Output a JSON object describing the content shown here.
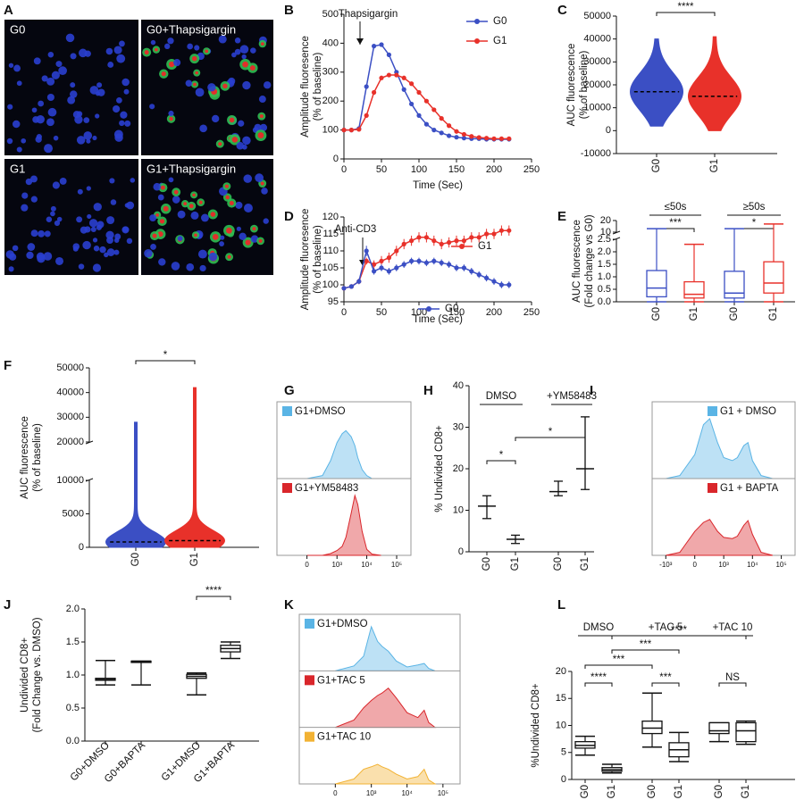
{
  "chart_data": [
    {
      "panel": "A",
      "type": "image",
      "labels": [
        "G0",
        "G0+Thapsigargin",
        "G1",
        "G1+Thapsigargin"
      ]
    },
    {
      "panel": "B",
      "type": "line",
      "annotation": "Thapsigargin",
      "xlabel": "Time (Sec)",
      "ylabel": [
        "Amplitude fluoresence",
        "(% of baseline)"
      ],
      "x": [
        0,
        10,
        20,
        30,
        40,
        50,
        60,
        70,
        80,
        90,
        100,
        110,
        120,
        130,
        140,
        150,
        160,
        170,
        180,
        190,
        200,
        210,
        220
      ],
      "xlim": [
        0,
        250
      ],
      "xticks": [
        0,
        50,
        100,
        150,
        200,
        250
      ],
      "ylim": [
        0,
        500
      ],
      "yticks": [
        0,
        100,
        200,
        300,
        400,
        500
      ],
      "series": [
        {
          "name": "G0",
          "color": "#3b4fc4",
          "values": [
            100,
            100,
            105,
            250,
            390,
            395,
            360,
            300,
            240,
            190,
            150,
            120,
            100,
            90,
            80,
            75,
            72,
            70,
            70,
            68,
            68,
            68,
            68
          ]
        },
        {
          "name": "G1",
          "color": "#e8312a",
          "values": [
            100,
            100,
            102,
            150,
            230,
            280,
            290,
            290,
            280,
            260,
            230,
            200,
            170,
            140,
            115,
            95,
            85,
            78,
            74,
            72,
            70,
            70,
            70
          ]
        }
      ]
    },
    {
      "panel": "C",
      "type": "violin",
      "ylabel": [
        "AUC fluorescence",
        "(% of baseline)"
      ],
      "ylim": [
        -10000,
        50000
      ],
      "yticks": [
        -10000,
        0,
        10000,
        20000,
        30000,
        40000,
        50000
      ],
      "categories": [
        "G0",
        "G1"
      ],
      "colors": [
        "#3b4fc4",
        "#e8312a"
      ],
      "min": [
        2000,
        0
      ],
      "median": [
        17000,
        15000
      ],
      "max": [
        40000,
        41000
      ],
      "significance": [
        {
          "label": "****",
          "pair": [
            0,
            1
          ]
        }
      ]
    },
    {
      "panel": "D",
      "type": "line",
      "annotation": "Anti-CD3",
      "xlabel": "Time (Sec)",
      "ylabel": [
        "Amplitude fluoresence",
        "(% of baseline)"
      ],
      "x": [
        0,
        10,
        20,
        30,
        40,
        50,
        60,
        70,
        80,
        90,
        100,
        110,
        120,
        130,
        140,
        150,
        160,
        170,
        180,
        190,
        200,
        210,
        220
      ],
      "xlim": [
        0,
        250
      ],
      "xticks": [
        0,
        50,
        100,
        150,
        200,
        250
      ],
      "ylim": [
        95,
        120
      ],
      "yticks": [
        95,
        100,
        105,
        110,
        115,
        120
      ],
      "series": [
        {
          "name": "G1",
          "color": "#e8312a",
          "values": [
            99,
            99.5,
            101,
            107,
            106,
            107,
            108,
            110,
            112,
            113,
            114,
            114,
            113,
            112,
            112.5,
            113,
            113,
            114,
            114,
            115,
            115,
            116,
            116
          ],
          "errors": [
            0.5,
            0.5,
            0.8,
            1,
            1.2,
            1.5,
            1.5,
            1.5,
            1.5,
            1.5,
            1.5,
            1.5,
            1.5,
            1.5,
            1.5,
            1.5,
            1.5,
            1.5,
            1.5,
            1.5,
            1.5,
            1.5,
            1.5
          ]
        },
        {
          "name": "G0",
          "color": "#3b4fc4",
          "values": [
            99,
            99.5,
            101,
            110,
            104,
            105,
            104,
            105,
            106,
            107,
            107,
            106.5,
            107,
            106.5,
            106,
            105,
            105,
            104,
            103,
            102,
            101,
            100,
            100
          ],
          "errors": [
            0.5,
            0.5,
            0.8,
            1.5,
            1,
            1,
            1,
            1,
            1,
            1,
            1,
            1,
            1,
            1,
            1,
            1,
            1,
            1,
            1,
            1,
            1,
            1,
            1
          ]
        }
      ]
    },
    {
      "panel": "E",
      "type": "box",
      "ylabel": [
        "AUC fluorescence",
        "(Fold change vs G0)"
      ],
      "ylim": [
        0,
        20
      ],
      "axis_break": [
        2.5,
        10
      ],
      "yticks": [
        {
          "value": 0,
          "label": "0.0"
        },
        {
          "value": 0.5,
          "label": "0.5"
        },
        {
          "value": 1,
          "label": "1.0"
        },
        {
          "value": 1.5,
          "label": "1.5"
        },
        {
          "value": 2,
          "label": "2.0"
        },
        {
          "value": 2.5,
          "label": "2.5"
        },
        10,
        20
      ],
      "group_titles": [
        "≤50s",
        "≥50s"
      ],
      "categories": [
        "G0",
        "G1",
        "G0",
        "G1"
      ],
      "colors": [
        "#3b4fc4",
        "#e8312a",
        "#3b4fc4",
        "#e8312a"
      ],
      "min": [
        0,
        0,
        0,
        0
      ],
      "q1": [
        0.2,
        0.15,
        0.15,
        0.35
      ],
      "median": [
        0.55,
        0.3,
        0.35,
        0.75
      ],
      "q3": [
        1.25,
        0.8,
        1.22,
        1.6
      ],
      "max": [
        13,
        2.3,
        13,
        17
      ],
      "significance": [
        {
          "label": "***",
          "pair": [
            0,
            1
          ]
        },
        {
          "label": "*",
          "pair": [
            2,
            3
          ]
        }
      ]
    },
    {
      "panel": "F",
      "type": "violin",
      "ylabel": [
        "AUC fluorescence",
        "(% of baseline)"
      ],
      "ylim": [
        0,
        50000
      ],
      "axis_break": [
        10000,
        20000
      ],
      "yticks": [
        0,
        5000,
        10000,
        20000,
        30000,
        40000,
        50000
      ],
      "categories": [
        "G0",
        "G1"
      ],
      "colors": [
        "#3b4fc4",
        "#e8312a"
      ],
      "min": [
        0,
        0
      ],
      "median": [
        800,
        1000
      ],
      "max": [
        28000,
        42000
      ],
      "significance": [
        {
          "label": "*",
          "pair": [
            0,
            1
          ]
        }
      ]
    },
    {
      "panel": "G",
      "type": "flow",
      "xlim": [
        -1000,
        300000
      ],
      "xticks": [
        0,
        {
          "value": 1000,
          "label": "10³"
        },
        {
          "value": 10000,
          "label": "10⁴"
        },
        {
          "value": 100000,
          "label": "10⁵"
        }
      ],
      "x": [
        0,
        300,
        600,
        1000,
        1500,
        2000,
        3000,
        4000,
        5000,
        7000,
        10000,
        15000,
        30000
      ],
      "samples": [
        {
          "name": "G1+DMSO",
          "color": "#5ab4e5",
          "values": [
            0,
            5,
            30,
            60,
            75,
            80,
            70,
            55,
            35,
            15,
            5,
            0,
            0
          ]
        },
        {
          "name": "G1+YM58483",
          "color": "#d9262b",
          "values": [
            0,
            0,
            3,
            8,
            15,
            30,
            70,
            100,
            85,
            40,
            10,
            2,
            0
          ]
        }
      ]
    },
    {
      "panel": "H",
      "type": "range",
      "ylabel": [
        "% Undivided CD8+"
      ],
      "ylim": [
        0,
        40
      ],
      "yticks": [
        0,
        10,
        20,
        30,
        40
      ],
      "group_titles": [
        "DMSO",
        "+YM58483"
      ],
      "categories": [
        "G0",
        "G1",
        "G0",
        "G1"
      ],
      "mean": [
        11,
        3,
        14.5,
        20
      ],
      "low": [
        8,
        2,
        13.5,
        15
      ],
      "high": [
        13.5,
        4,
        17,
        32.5
      ],
      "significance": [
        {
          "label": "*",
          "pair": [
            0,
            1
          ]
        },
        {
          "label": "*",
          "pair": [
            1,
            3
          ]
        }
      ]
    },
    {
      "panel": "I",
      "type": "flow",
      "xlim": [
        -3000,
        300000
      ],
      "xticks": [
        {
          "value": -1000,
          "label": "-10³"
        },
        0,
        {
          "value": 1000,
          "label": "10³"
        },
        {
          "value": 10000,
          "label": "10⁴"
        },
        {
          "value": 100000,
          "label": "10⁵"
        }
      ],
      "x": [
        -1000,
        -300,
        0,
        150,
        300,
        600,
        1000,
        2000,
        3000,
        5000,
        7000,
        10000,
        20000,
        50000
      ],
      "samples": [
        {
          "name": "G1 + DMSO",
          "color": "#5ab4e5",
          "values": [
            0,
            5,
            40,
            90,
            100,
            60,
            35,
            30,
            35,
            55,
            60,
            30,
            5,
            0
          ]
        },
        {
          "name": "G1 + BAPTA",
          "color": "#d9262b",
          "values": [
            0,
            5,
            40,
            55,
            60,
            40,
            30,
            28,
            32,
            50,
            58,
            35,
            5,
            0
          ]
        }
      ]
    },
    {
      "panel": "J",
      "type": "box",
      "ylabel": [
        "Undivided CD8+",
        "(Fold Change vs. DMSO)"
      ],
      "ylim": [
        0,
        2
      ],
      "yticks": [
        {
          "value": 0,
          "label": "0.0"
        },
        {
          "value": 0.5,
          "label": "0.5"
        },
        {
          "value": 1,
          "label": "1.0"
        },
        {
          "value": 1.5,
          "label": "1.5"
        },
        {
          "value": 2,
          "label": "2.0"
        }
      ],
      "categories": [
        "G0+DMSO",
        "G0+BAPTA",
        "G1+DMSO",
        "G1+BAPTA"
      ],
      "colors": [
        "#111111",
        "#111111",
        "#111111",
        "#111111"
      ],
      "min": [
        0.85,
        0.85,
        0.7,
        1.25
      ],
      "q1": [
        0.92,
        1.19,
        0.95,
        1.35
      ],
      "median": [
        0.93,
        1.2,
        0.98,
        1.4
      ],
      "q3": [
        0.95,
        1.21,
        1.01,
        1.45
      ],
      "max": [
        1.22,
        1.21,
        1.03,
        1.5
      ],
      "significance": [
        {
          "label": "****",
          "pair": [
            2,
            3
          ]
        }
      ]
    },
    {
      "panel": "K",
      "type": "flow",
      "xlim": [
        -1000,
        300000
      ],
      "xticks": [
        0,
        {
          "value": 1000,
          "label": "10³"
        },
        {
          "value": 10000,
          "label": "10⁴"
        },
        {
          "value": 100000,
          "label": "10⁵"
        }
      ],
      "x": [
        0,
        300,
        600,
        1000,
        1500,
        2000,
        3000,
        5000,
        10000,
        20000,
        30000,
        40000,
        60000
      ],
      "samples": [
        {
          "name": "G1+DMSO",
          "color": "#5ab4e5",
          "values": [
            0,
            10,
            30,
            90,
            60,
            50,
            40,
            20,
            8,
            12,
            15,
            5,
            0
          ]
        },
        {
          "name": "G1+TAC 5",
          "color": "#d9262b",
          "values": [
            0,
            15,
            40,
            55,
            65,
            70,
            80,
            60,
            30,
            20,
            35,
            10,
            0
          ]
        },
        {
          "name": "G1+TAC 10",
          "color": "#f2b233",
          "values": [
            0,
            10,
            30,
            35,
            40,
            35,
            30,
            20,
            10,
            15,
            30,
            8,
            0
          ]
        }
      ]
    },
    {
      "panel": "L",
      "type": "box",
      "ylabel": [
        "%Undivided CD8+"
      ],
      "ylim": [
        0,
        20
      ],
      "yticks": [
        0,
        5,
        10,
        15,
        20
      ],
      "group_titles": [
        "DMSO",
        "+TAC 5",
        "+TAC 10"
      ],
      "categories": [
        "G0",
        "G1",
        "G0",
        "G1",
        "G0",
        "G1"
      ],
      "colors": [
        "#111111",
        "#111111",
        "#111111",
        "#111111",
        "#111111",
        "#111111"
      ],
      "min": [
        4.5,
        1.2,
        6,
        3.3,
        7,
        6.5
      ],
      "q1": [
        5.8,
        1.5,
        8.5,
        4.2,
        8.5,
        7
      ],
      "median": [
        6.3,
        1.8,
        9.5,
        5.5,
        9,
        9
      ],
      "q3": [
        7,
        2.2,
        10.8,
        6.8,
        10.5,
        10.5
      ],
      "max": [
        8,
        2.8,
        16,
        8.7,
        10.5,
        10.8
      ],
      "significance": [
        {
          "label": "****",
          "pair": [
            0,
            1
          ]
        },
        {
          "label": "***",
          "pair": [
            2,
            3
          ]
        },
        {
          "label": "NS",
          "pair": [
            4,
            5
          ]
        },
        {
          "label": "***",
          "pair": [
            0,
            2
          ]
        },
        {
          "label": "***",
          "pair": [
            1,
            3
          ]
        },
        {
          "label": "****",
          "pair": [
            1,
            5
          ]
        }
      ]
    }
  ]
}
